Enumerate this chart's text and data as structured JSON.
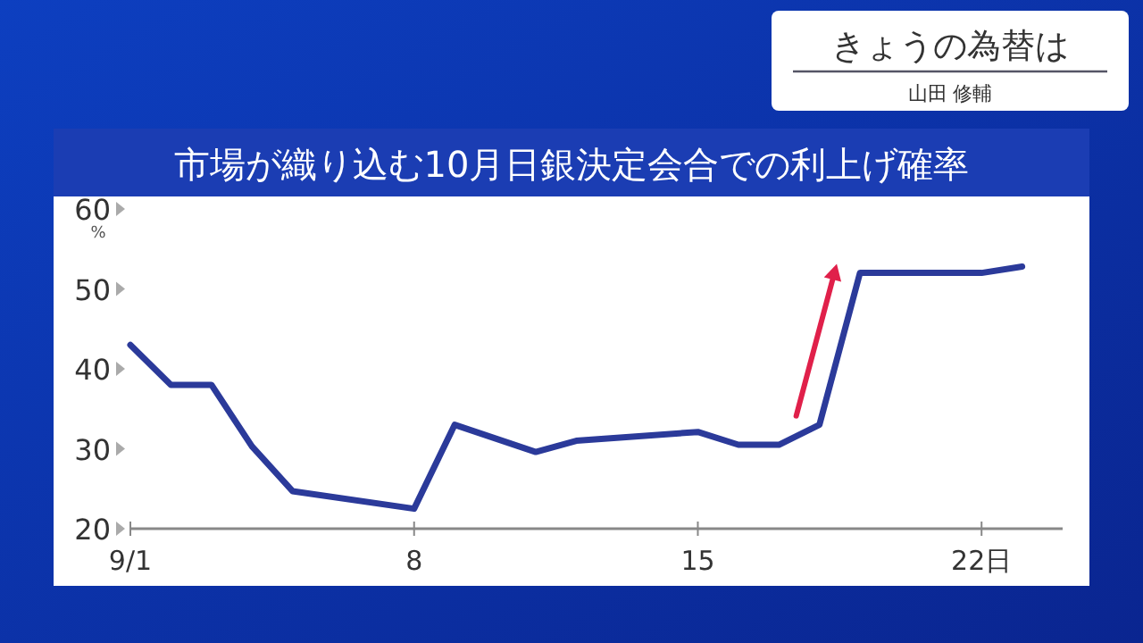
{
  "chart_data": {
    "type": "line",
    "title": "市場が織り込む10月日銀決定会合での利上げ確率",
    "annotations": [
      "きょうの為替は",
      "山田 修輔"
    ],
    "ylabel": "%",
    "x": [
      "--09-01",
      "--09-02",
      "--09-03",
      "--09-04",
      "--09-05",
      "--09-08",
      "--09-09",
      "--09-11",
      "--09-12",
      "--09-15",
      "--09-16",
      "--09-17",
      "--09-18",
      "--09-19",
      "--09-22",
      "--09-23"
    ],
    "values": [
      43,
      38,
      38,
      30.3,
      24.7,
      22.5,
      33,
      29.6,
      31,
      32.1,
      30.5,
      30.5,
      33,
      52,
      52,
      52.8
    ],
    "color": "#2b3a9a",
    "xlim": [
      "--09-01",
      "--09-24"
    ],
    "xticks": [
      {
        "value": "--09-01",
        "label": "9/1"
      },
      {
        "value": "--09-08",
        "label": "8"
      },
      {
        "value": "--09-15",
        "label": "15"
      },
      {
        "value": "--09-22",
        "label": "22日"
      }
    ],
    "ylim": [
      20,
      60
    ],
    "yticks": [
      20,
      30,
      40,
      50,
      60
    ]
  }
}
